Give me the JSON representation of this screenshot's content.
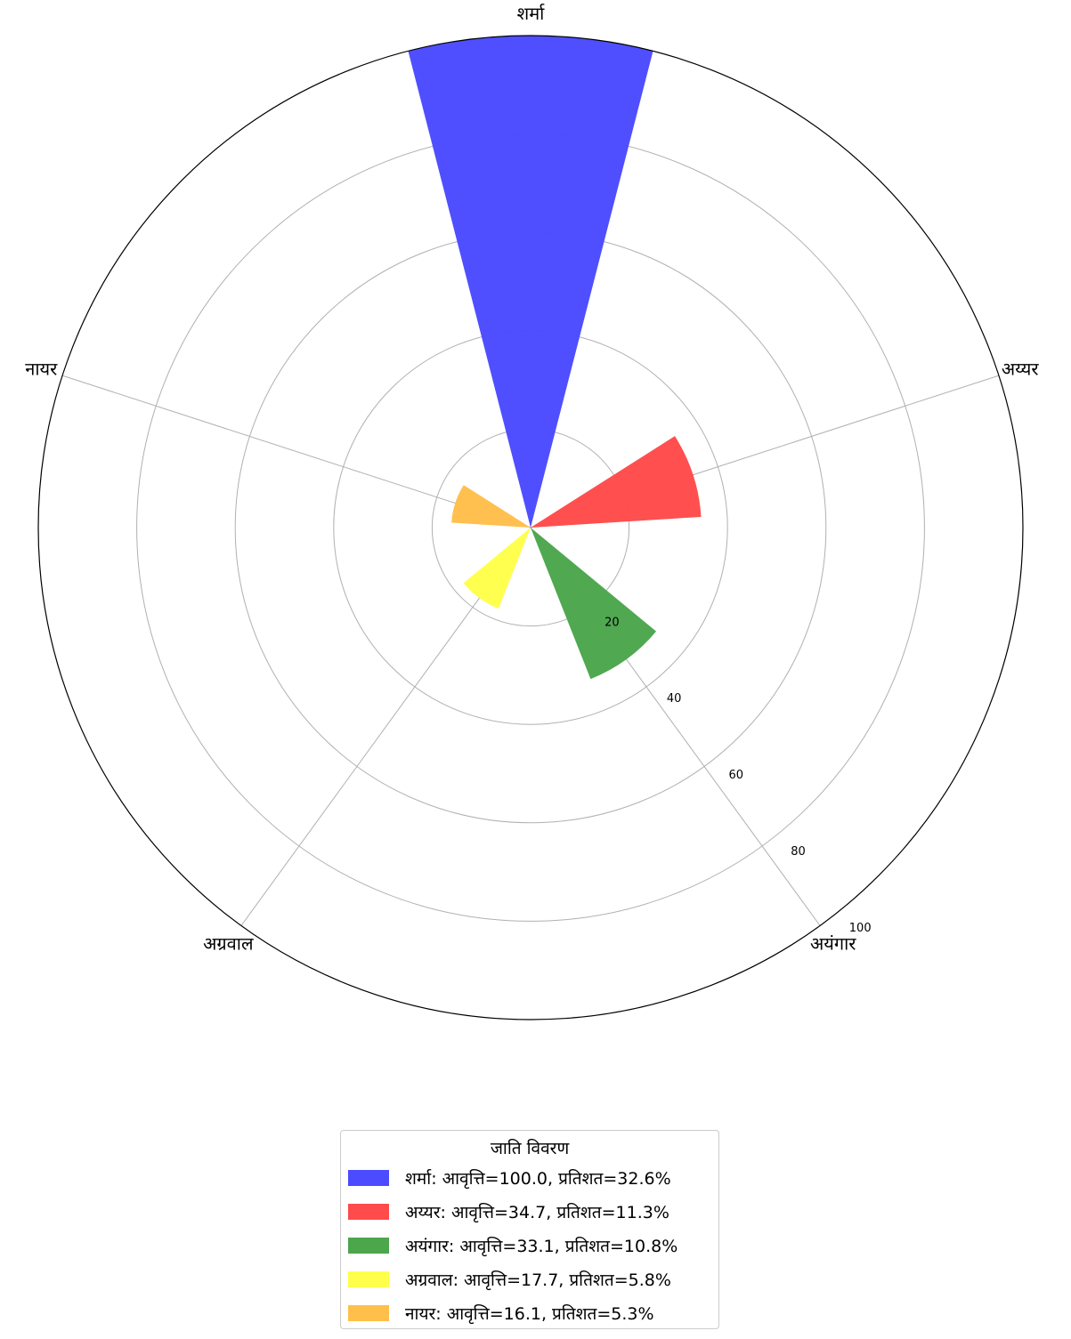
{
  "chart_data": {
    "type": "polar-bar",
    "categories": [
      "शर्मा",
      "अय्यर",
      "अयंगार",
      "अग्रवाल",
      "नायर"
    ],
    "values": [
      100.0,
      34.7,
      33.1,
      17.7,
      16.1
    ],
    "colors": [
      "#4b4bff",
      "#ff4b4b",
      "#4ca64c",
      "#ffff4b",
      "#ffbf4b"
    ],
    "radial_ticks": [
      20,
      40,
      60,
      80,
      100
    ],
    "rlim": [
      0,
      100
    ],
    "grid": true,
    "legend": {
      "title": "जाति विवरण",
      "placement": "bottom-center",
      "entries": [
        "शर्मा: आवृत्ति=100.0, प्रतिशत=32.6%",
        "अय्यर: आवृत्ति=34.7, प्रतिशत=11.3%",
        "अयंगार: आवृत्ति=33.1, प्रतिशत=10.8%",
        "अग्रवाल: आवृत्ति=17.7, प्रतिशत=5.8%",
        "नायर: आवृत्ति=16.1, प्रतिशत=5.3%"
      ]
    }
  }
}
